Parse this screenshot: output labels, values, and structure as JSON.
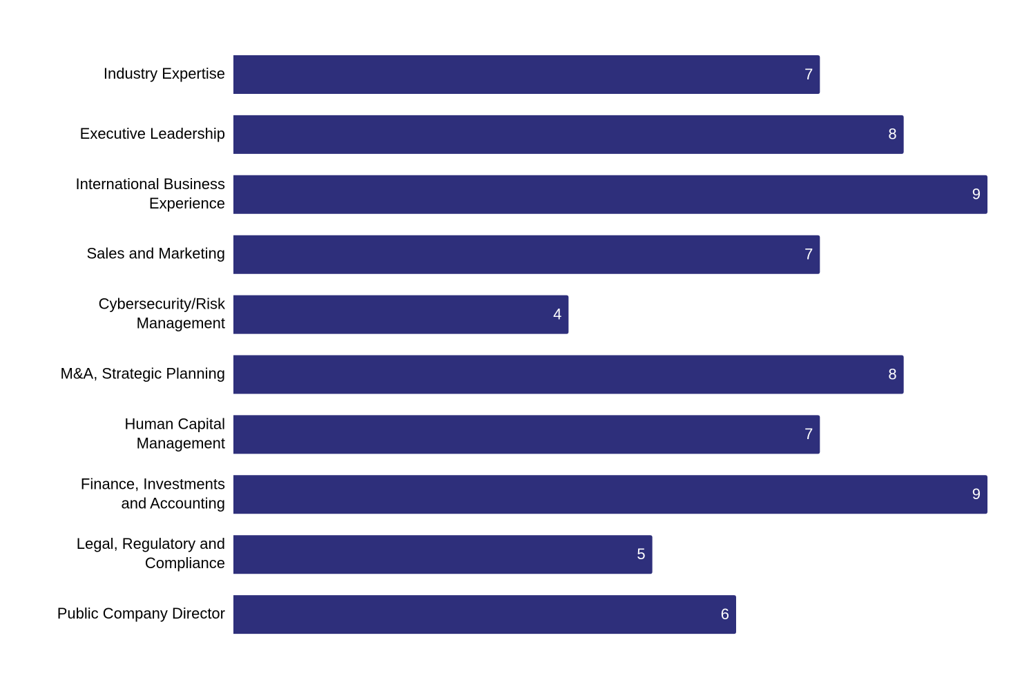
{
  "chart_data": {
    "type": "hbar",
    "categories": [
      "Industry Expertise",
      "Executive Leadership",
      "International Business\nExperience",
      "Sales and Marketing",
      "Cybersecurity/Risk\nManagement",
      "M&A, Strategic Planning",
      "Human Capital\nManagement",
      "Finance, Investments\nand Accounting",
      "Legal, Regulatory and\nCompliance",
      "Public Company Director"
    ],
    "values": [
      7,
      8,
      9,
      7,
      4,
      8,
      7,
      9,
      5,
      6
    ],
    "color": "#2e2f7b",
    "xlim": [
      0,
      9
    ]
  }
}
